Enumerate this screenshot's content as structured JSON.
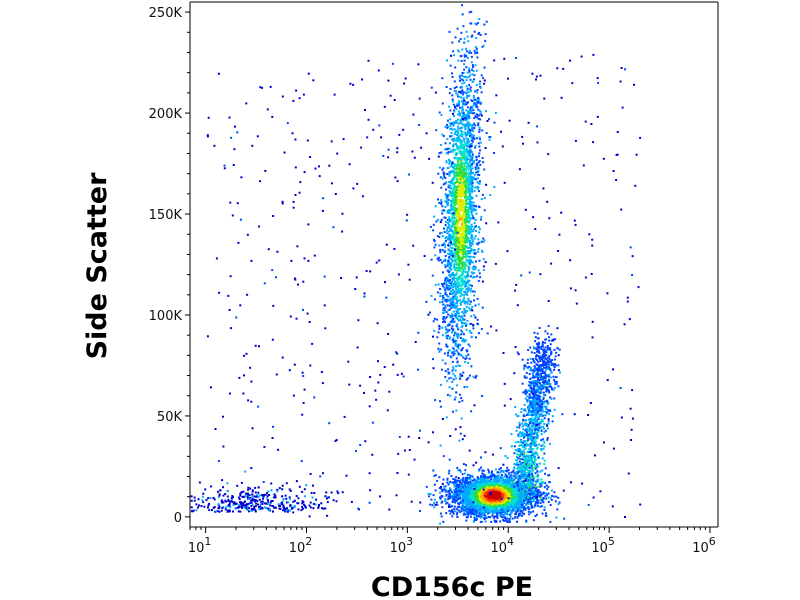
{
  "chart_data": {
    "type": "scatter",
    "subtype": "flow-cytometry-density-dot-plot",
    "xlabel": "CD156c PE",
    "ylabel": "Side Scatter",
    "x_scale": "log",
    "xlim": [
      7,
      1200000
    ],
    "ylim": [
      -5000,
      255000
    ],
    "x_ticks": [
      {
        "value": 10,
        "base": "10",
        "exp": "1"
      },
      {
        "value": 100,
        "base": "10",
        "exp": "2"
      },
      {
        "value": 1000,
        "base": "10",
        "exp": "3"
      },
      {
        "value": 10000,
        "base": "10",
        "exp": "4"
      },
      {
        "value": 100000,
        "base": "10",
        "exp": "5"
      },
      {
        "value": 1000000,
        "base": "10",
        "exp": "6"
      }
    ],
    "y_ticks": [
      {
        "value": 0,
        "label": "0"
      },
      {
        "value": 50000,
        "label": "50K"
      },
      {
        "value": 100000,
        "label": "100K"
      },
      {
        "value": 150000,
        "label": "150K"
      },
      {
        "value": 200000,
        "label": "200K"
      },
      {
        "value": 250000,
        "label": "250K"
      }
    ],
    "populations": [
      {
        "name_visible": false,
        "center_x": 3500,
        "center_y": 150000,
        "spread_y": 45000,
        "density": "medium-high"
      },
      {
        "name_visible": false,
        "center_x": 7000,
        "center_y": 12000,
        "spread_y": 8000,
        "density": "very-high"
      },
      {
        "name_visible": false,
        "center_x": 20000,
        "center_y": 45000,
        "spread_y": 15000,
        "density": "medium"
      },
      {
        "name_visible": false,
        "center_x": 50,
        "center_y": 3000,
        "spread_y": 3000,
        "density": "low"
      }
    ],
    "color_scale": [
      "#0000cc",
      "#0044ff",
      "#00aaff",
      "#00e0d0",
      "#33dd33",
      "#ddee00",
      "#ffaa00",
      "#ff3300",
      "#cc0000"
    ],
    "grid": false,
    "legend": "none"
  }
}
